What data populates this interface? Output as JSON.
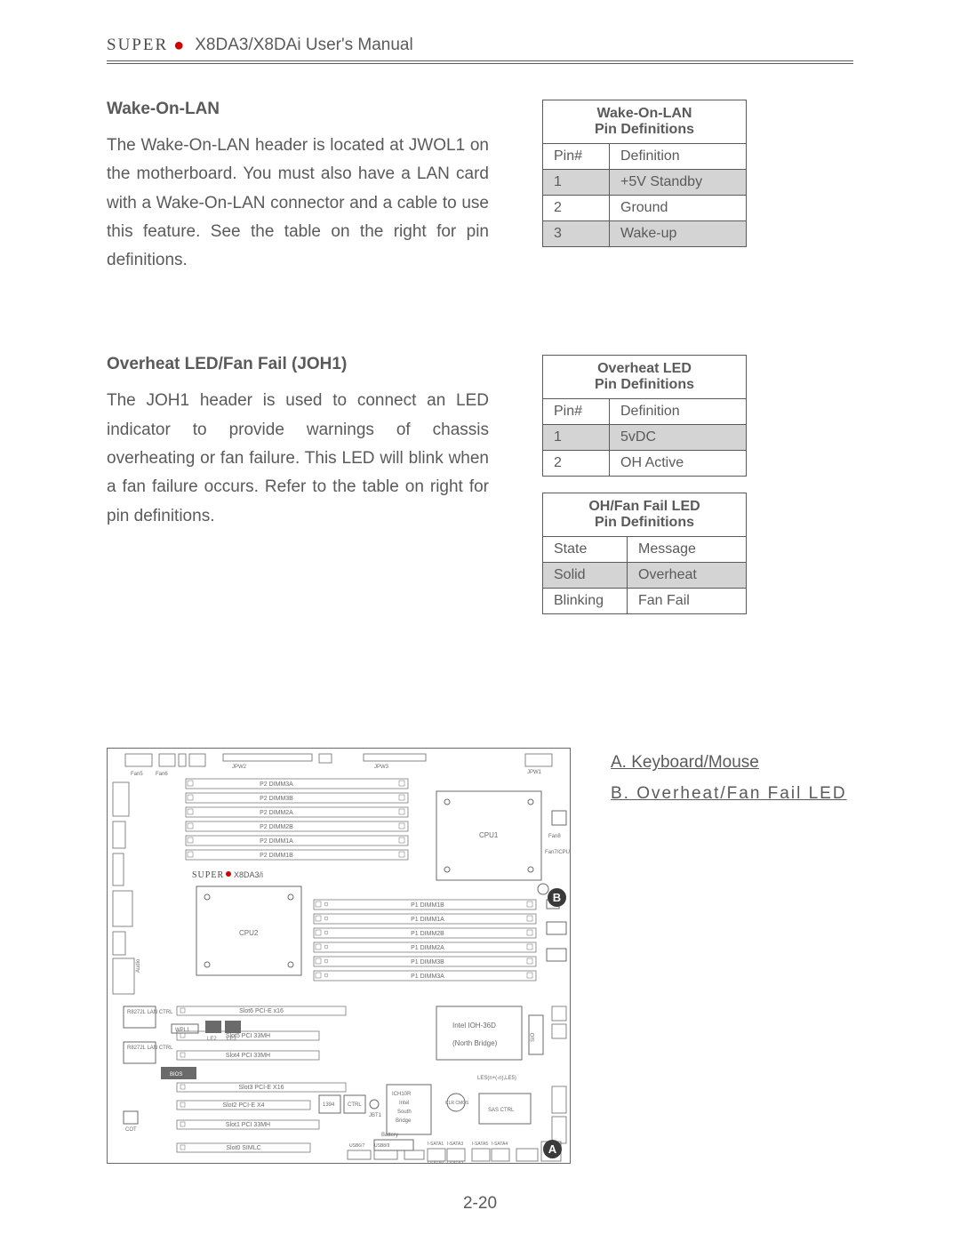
{
  "header": {
    "logo_text": "SUPER",
    "title": "X8DA3/X8DAi User's Manual"
  },
  "section1": {
    "heading": "Wake-On-LAN",
    "body": "The Wake-On-LAN header is located at JWOL1 on the motherboard. You must also have a LAN card with a Wake-On-LAN connector and a cable to use this feature. See the table on the right for pin definitions.",
    "table": {
      "title_line1": "Wake-On-LAN",
      "title_line2": "Pin Definitions",
      "col1": "Pin#",
      "col2": "Definition",
      "rows": [
        {
          "c1": "1",
          "c2": "+5V Standby",
          "shaded": true
        },
        {
          "c1": "2",
          "c2": "Ground",
          "shaded": false
        },
        {
          "c1": "3",
          "c2": "Wake-up",
          "shaded": true
        }
      ]
    }
  },
  "section2": {
    "heading": "Overheat LED/Fan Fail (JOH1)",
    "body": "The JOH1 header is used to connect an LED indicator to provide warnings of chassis overheating or fan failure. This  LED will blink when a fan failure occurs. Refer to the table on right for pin definitions.",
    "tableA": {
      "title_line1": "Overheat LED",
      "title_line2": "Pin Definitions",
      "col1": "Pin#",
      "col2": "Definition",
      "rows": [
        {
          "c1": "1",
          "c2": "5vDC",
          "shaded": true
        },
        {
          "c1": "2",
          "c2": "OH Active",
          "shaded": false
        }
      ]
    },
    "tableB": {
      "title_line1": "OH/Fan Fail LED",
      "title_line2": "Pin Definitions",
      "col1": "State",
      "col2": "Message",
      "rows": [
        {
          "c1": "Solid",
          "c2": "Overheat",
          "shaded": true
        },
        {
          "c1": "Blinking",
          "c2": "Fan Fail",
          "shaded": false
        }
      ]
    }
  },
  "legend": {
    "a": "A. Keyboard/Mouse",
    "b": "B. Overheat/Fan Fail LED"
  },
  "diagram": {
    "board_label_prefix": "SUPER",
    "board_label": "X8DA3/i",
    "cpu1": "CPU1",
    "cpu2": "CPU2",
    "north_bridge_l1": "Intel IOH-36D",
    "north_bridge_l2": "(North Bridge)",
    "south_bridge_l1": "ICH10R",
    "south_bridge_l2": "Intel",
    "south_bridge_l3": "South",
    "south_bridge_l4": "Bridge",
    "sas_ctrl": "SAS CTRL",
    "battery": "Battery",
    "p2_dimms": [
      "P2 DIMM3A",
      "P2 DIMM3B",
      "P2 DIMM2A",
      "P2 DIMM2B",
      "P2 DIMM1A",
      "P2 DIMM1B"
    ],
    "p1_dimms": [
      "P1 DIMM1B",
      "P1 DIMM1A",
      "P1 DIMM2B",
      "P1 DIMM2A",
      "P1 DIMM3B",
      "P1 DIMM3A"
    ],
    "slots": [
      "Slot6 PCI-E x16",
      "Slot5 PCI 33MH",
      "Slot4 PCI 33MH",
      "Slot3 PCI-E X16",
      "Slot2 PCI-E X4",
      "Slot1 PCI 33MH",
      "Slot0 SIMLC"
    ],
    "lan1": "R8272L LAN CTRL",
    "lan2": "R8272L LAN CTRL",
    "wpl": "WPL1",
    "jpw1": "JPW1",
    "jpw2": "JPW2",
    "jpw3": "JPW3",
    "fan_labels": [
      "Fan5",
      "Fan6",
      "Fan7/CPU1",
      "Fan8"
    ],
    "isata": [
      "I-SATA1",
      "I-SATA3",
      "I-SATA0",
      "I-SATA2",
      "I-SATA5",
      "I-SATA4"
    ],
    "sas_labels": [
      "SAS4",
      "SAS6",
      "SAS5",
      "SAS7"
    ],
    "clr_cmos": "CLR CMOS",
    "pch_labels": [
      "LE2",
      "LE3"
    ],
    "bios": "BIOS",
    "cot": "COT",
    "jbt1": "JBT1",
    "ctrl_small": "CTRL",
    "i394": "1394",
    "usb_label": "USB6/7",
    "usb_label2": "USB8/9",
    "lesp": "LES(n+(-n),LE5)",
    "sio": "SIO",
    "audio": "Audio"
  },
  "page_number": "2-20",
  "colors": {
    "text": "#5a5a5a",
    "border": "#5a5a5a",
    "shade": "#d4d4d4",
    "logo_dot": "#d00000",
    "marker_bg": "#3a3a3a",
    "marker_fg": "#ffffff"
  }
}
